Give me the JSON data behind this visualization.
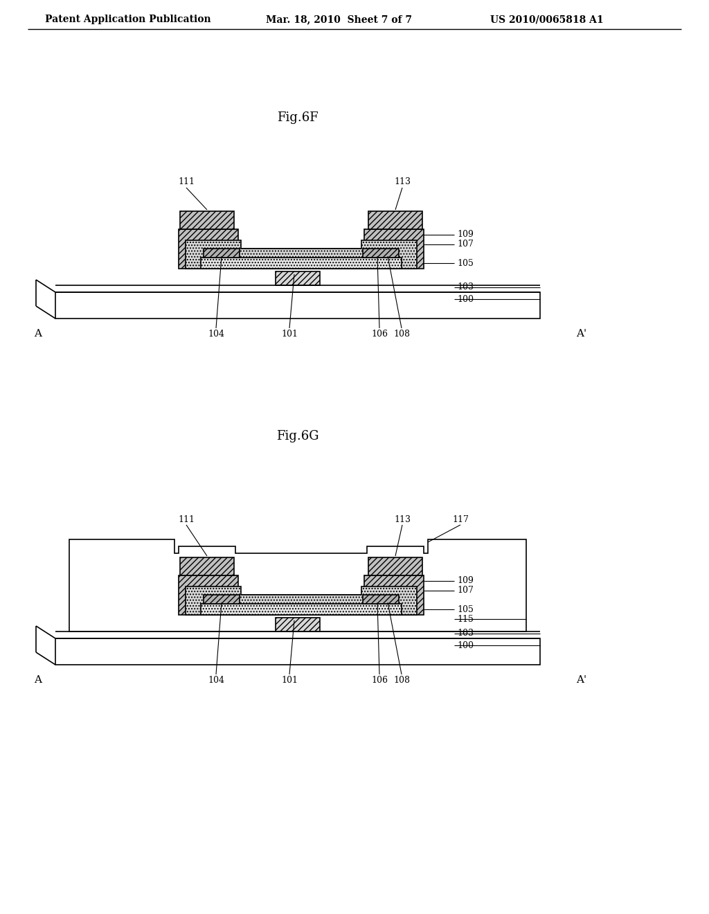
{
  "bg_color": "#ffffff",
  "header_left": "Patent Application Publication",
  "header_mid": "Mar. 18, 2010  Sheet 7 of 7",
  "header_right": "US 2010/0065818 A1",
  "fig6F_title": "Fig.6F",
  "fig6G_title": "Fig.6G",
  "line_color": "#000000"
}
